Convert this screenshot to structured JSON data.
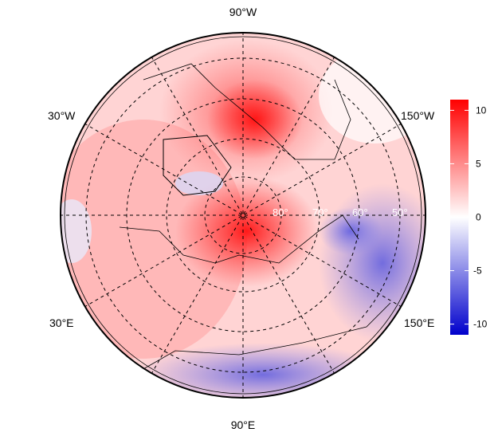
{
  "map": {
    "projection": "north polar stereographic",
    "meridian_labels": {
      "top": "90°W",
      "bottom": "90°E",
      "upper_left": "30°W",
      "lower_left": "30°E",
      "upper_right": "150°W",
      "lower_right": "150°E"
    },
    "latitude_labels": [
      "80°",
      "70°",
      "60°",
      "50°"
    ]
  },
  "colorbar": {
    "ticks": [
      "10",
      "5",
      "0",
      "-5",
      "-10"
    ],
    "tick_values": [
      10,
      5,
      0,
      -5,
      -10
    ],
    "range": [
      -11,
      11
    ],
    "colors": {
      "max": "#ff0000",
      "mid": "#ffffff",
      "min": "#0000cc"
    }
  }
}
